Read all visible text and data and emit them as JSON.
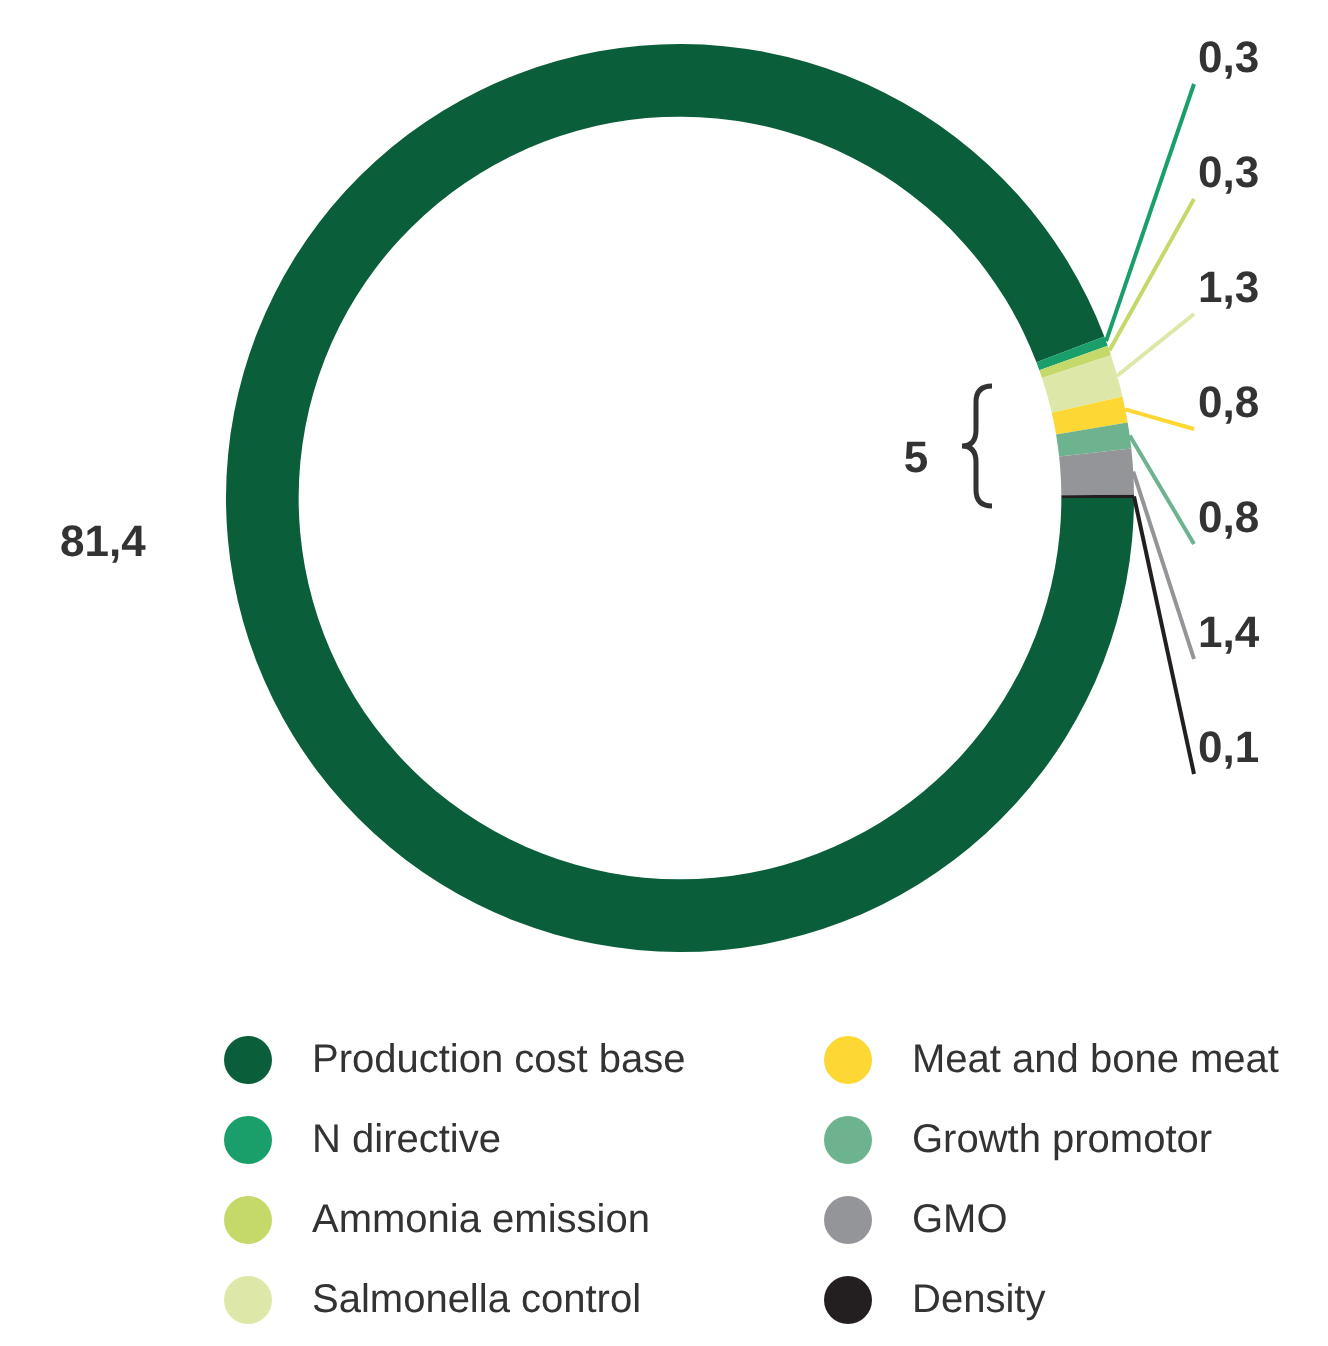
{
  "chart_data": {
    "type": "donut",
    "categories": [
      "Production cost base",
      "N directive",
      "Ammonia emission",
      "Salmonella control",
      "Meat and bone meat",
      "Growth promotor",
      "GMO",
      "Density"
    ],
    "values": [
      81.4,
      0.3,
      0.3,
      1.3,
      0.8,
      0.8,
      1.4,
      0.1
    ],
    "value_labels": [
      "81,4",
      "0,3",
      "0,3",
      "1,3",
      "0,8",
      "0,8",
      "1,4",
      "0,1"
    ],
    "colors": [
      "#0a5e3a",
      "#1a9e6a",
      "#c5d96a",
      "#dde8a8",
      "#fdd835",
      "#6db38f",
      "#939598",
      "#231f20"
    ],
    "annotations": [
      "5"
    ],
    "legend": "bottom"
  }
}
